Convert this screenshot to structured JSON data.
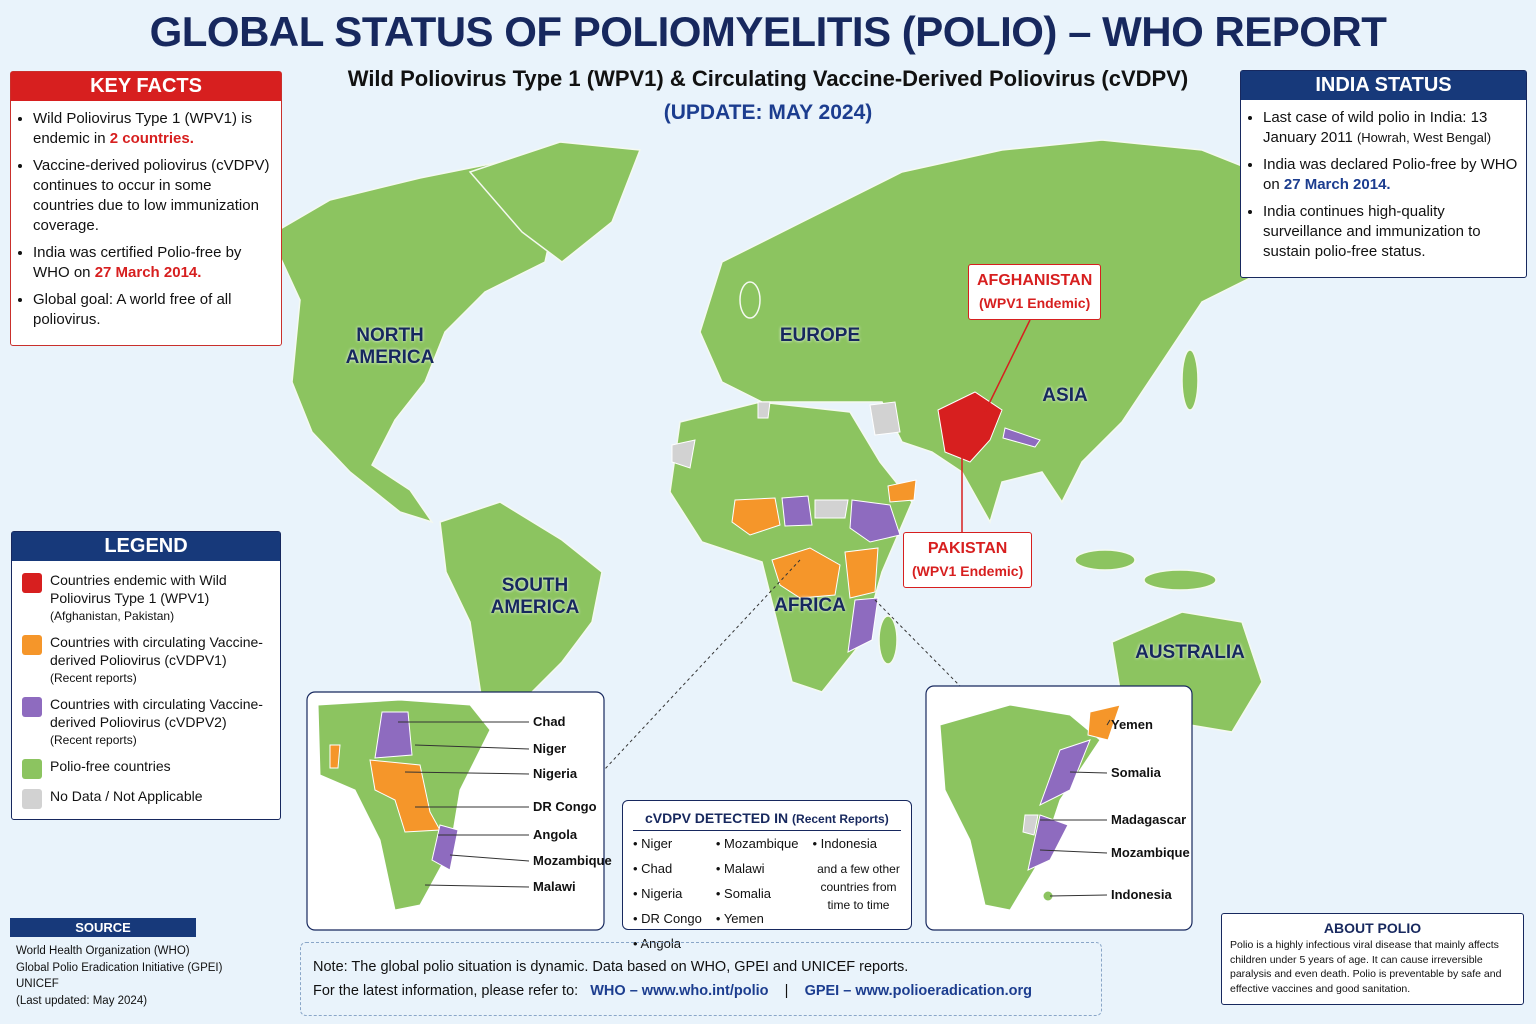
{
  "header": {
    "title": "GLOBAL STATUS OF POLIOMYELITIS (POLIO) – WHO REPORT",
    "subtitle": "Wild Poliovirus Type 1 (WPV1) & Circulating Vaccine-Derived Poliovirus (cVDPV)",
    "update": "(UPDATE: MAY 2024)"
  },
  "key_facts": {
    "title": "KEY FACTS",
    "items": [
      {
        "text": "Wild Poliovirus Type 1 (WPV1) is endemic in ",
        "highlight": "2 countries."
      },
      {
        "text": "Vaccine-derived poliovirus (cVDPV) continues to occur in some countries due to low immunization coverage."
      },
      {
        "text": "India was certified Polio-free by WHO on ",
        "highlight": "27 March 2014."
      },
      {
        "text": "Global goal: A world free of all poliovirus."
      }
    ]
  },
  "india_status": {
    "title": "INDIA STATUS",
    "items": [
      {
        "text": "Last case of wild polio in India: 13 January 2011",
        "note": "(Howrah, West Bengal)"
      },
      {
        "text": "India was declared Polio-free by WHO on ",
        "highlight": "27 March 2014."
      },
      {
        "text": "India continues high-quality surveillance and immunization to sustain polio-free status."
      }
    ]
  },
  "map": {
    "regions": [
      "NORTH AMERICA",
      "SOUTH AMERICA",
      "EUROPE",
      "AFRICA",
      "ASIA",
      "AUSTRALIA"
    ],
    "callouts": [
      {
        "name": "AFGHANISTAN",
        "status": "(WPV1 Endemic)"
      },
      {
        "name": "PAKISTAN",
        "status": "(WPV1 Endemic)"
      }
    ]
  },
  "legend": {
    "title": "LEGEND",
    "items": [
      {
        "color": "#d71f1f",
        "label": "Countries endemic with Wild Poliovirus Type 1 (WPV1)",
        "note": "(Afghanistan, Pakistan)"
      },
      {
        "color": "#f5962a",
        "label": "Countries with circulating Vaccine-derived Poliovirus (cVDPV1)",
        "note": "(Recent reports)"
      },
      {
        "color": "#8e6bbf",
        "label": "Countries with circulating Vaccine-derived Poliovirus (cVDPV2)",
        "note": "(Recent reports)"
      },
      {
        "color": "#8cc460",
        "label": "Polio-free countries"
      },
      {
        "color": "#d2d2d2",
        "label": "No Data / Not Applicable"
      }
    ]
  },
  "inset_left": {
    "labels": [
      "Chad",
      "Niger",
      "Nigeria",
      "DR Congo",
      "Angola",
      "Mozambique",
      "Malawi"
    ]
  },
  "inset_right": {
    "labels": [
      "Yemen",
      "Somalia",
      "Madagascar",
      "Mozambique",
      "Indonesia"
    ]
  },
  "cvdpv": {
    "title": "cVDPV DETECTED IN",
    "subtitle": "(Recent Reports)",
    "columns": [
      [
        "Niger",
        "Chad",
        "Nigeria",
        "DR Congo",
        "Angola"
      ],
      [
        "Mozambique",
        "Malawi",
        "Somalia",
        "Yemen"
      ],
      [
        "Indonesia"
      ]
    ],
    "note": "and a few other countries from time to time"
  },
  "source": {
    "title": "SOURCE",
    "lines": [
      "World Health Organization (WHO)",
      "Global Polio Eradication Initiative (GPEI)",
      "UNICEF",
      "(Last updated: May 2024)"
    ]
  },
  "note": {
    "text": "Note: The global polio situation is dynamic. Data based on WHO, GPEI and UNICEF reports.",
    "refer": "For the latest information, please refer to:",
    "links": [
      "WHO – www.who.int/polio",
      "GPEI – www.polioeradication.org"
    ],
    "separator": "|"
  },
  "about": {
    "title": "ABOUT POLIO",
    "text": "Polio is a highly infectious viral disease that mainly affects children under 5 years of age. It can cause irreversible paralysis and even death. Polio is preventable by safe and effective vaccines and good sanitation."
  }
}
